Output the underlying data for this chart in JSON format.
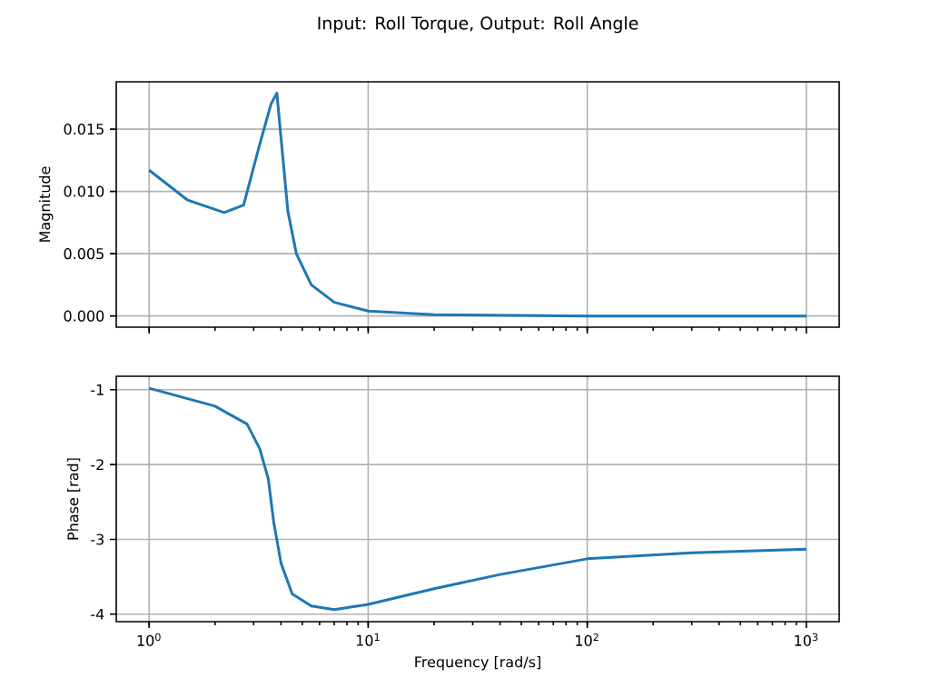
{
  "chart_data": [
    {
      "type": "line",
      "title": "Input: Roll Torque, Output: Roll Angle",
      "ylabel": "Magnitude",
      "log": "x",
      "grid": true,
      "tick_labels": "y",
      "xlim": [
        0.708,
        1413
      ],
      "ylim": [
        -0.0009,
        0.0188
      ],
      "xticks": [
        {
          "value": 1,
          "label": null
        },
        {
          "value": 10,
          "label": null
        },
        {
          "value": 100,
          "label": null
        },
        {
          "value": 1000,
          "label": null
        }
      ],
      "yticks": [
        {
          "value": 0,
          "label": "0.000"
        },
        {
          "value": 0.005,
          "label": "0.005"
        },
        {
          "value": 0.01,
          "label": "0.010"
        },
        {
          "value": 0.015,
          "label": "0.015"
        }
      ],
      "series": [
        {
          "color": "#1f77b4",
          "x": [
            1,
            1.5,
            2.2,
            2.7,
            3.2,
            3.6,
            3.83,
            4.0,
            4.3,
            4.7,
            5.5,
            7,
            10,
            20,
            100,
            1000
          ],
          "values": [
            0.0117,
            0.0093,
            0.0083,
            0.0089,
            0.0138,
            0.017,
            0.0179,
            0.0143,
            0.0084,
            0.005,
            0.0025,
            0.0011,
            0.0004,
            0.0001,
            0,
            0
          ]
        }
      ]
    },
    {
      "type": "line",
      "xlabel": "Frequency [rad/s]",
      "ylabel": "Phase [rad]",
      "log": "x",
      "grid": true,
      "xlim": [
        0.708,
        1413
      ],
      "ylim": [
        -4.1,
        -0.82
      ],
      "xticks": [
        {
          "value": 1,
          "label": "10$^{0}$"
        },
        {
          "value": 10,
          "label": "10$^{1}$"
        },
        {
          "value": 100,
          "label": "10$^{2}$"
        },
        {
          "value": 1000,
          "label": "10$^{3}$"
        }
      ],
      "yticks": [
        -4,
        -3,
        -2,
        -1
      ],
      "series": [
        {
          "color": "#1f77b4",
          "x": [
            1,
            2,
            2.8,
            3.2,
            3.5,
            3.7,
            4.0,
            4.5,
            5.5,
            7,
            10,
            20,
            40,
            100,
            300,
            1000
          ],
          "values": [
            -0.98,
            -1.22,
            -1.46,
            -1.79,
            -2.19,
            -2.76,
            -3.32,
            -3.73,
            -3.89,
            -3.94,
            -3.87,
            -3.66,
            -3.47,
            -3.26,
            -3.18,
            -3.13
          ]
        }
      ]
    }
  ]
}
